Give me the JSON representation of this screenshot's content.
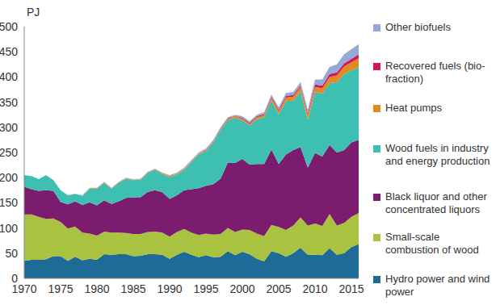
{
  "chart_data": {
    "type": "area",
    "stacked": true,
    "y_label": "PJ",
    "x": [
      1970,
      1971,
      1972,
      1973,
      1974,
      1975,
      1976,
      1977,
      1978,
      1979,
      1980,
      1981,
      1982,
      1983,
      1984,
      1985,
      1986,
      1987,
      1988,
      1989,
      1990,
      1991,
      1992,
      1993,
      1994,
      1995,
      1996,
      1997,
      1998,
      1999,
      2000,
      2001,
      2002,
      2003,
      2004,
      2005,
      2006,
      2007,
      2008,
      2009,
      2010,
      2011,
      2012,
      2013,
      2014,
      2015,
      2016
    ],
    "xlim": [
      1970,
      2016
    ],
    "xticks": [
      1970,
      1975,
      1980,
      1985,
      1990,
      1995,
      2000,
      2005,
      2010,
      2015
    ],
    "ylim": [
      0,
      500
    ],
    "yticks": [
      0,
      50,
      100,
      150,
      200,
      250,
      300,
      350,
      400,
      450,
      500
    ],
    "grid": false,
    "legend": "right",
    "series": [
      {
        "name": "Hydro power and wind power",
        "color": "#1f6b98",
        "values": [
          35,
          37,
          37,
          38,
          44,
          44,
          35,
          43,
          36,
          39,
          37,
          48,
          47,
          48,
          48,
          44,
          45,
          48,
          48,
          47,
          39,
          47,
          53,
          47,
          42,
          46,
          42,
          43,
          54,
          46,
          53,
          48,
          39,
          34,
          54,
          50,
          43,
          50,
          61,
          47,
          47,
          46,
          60,
          47,
          50,
          62,
          68
        ]
      },
      {
        "name": "Small-scale combustion of wood",
        "color": "#a9c23f",
        "values": [
          92,
          90,
          85,
          80,
          75,
          68,
          64,
          60,
          55,
          50,
          48,
          45,
          44,
          43,
          42,
          44,
          43,
          44,
          45,
          44,
          44,
          45,
          45,
          44,
          44,
          43,
          45,
          45,
          46,
          46,
          44,
          48,
          50,
          50,
          52,
          52,
          53,
          55,
          60,
          58,
          62,
          58,
          68,
          58,
          60,
          60,
          62
        ]
      },
      {
        "name": "Black liquor and other concentrated liquors",
        "color": "#7b1c6e",
        "values": [
          55,
          50,
          52,
          57,
          55,
          40,
          48,
          50,
          55,
          62,
          60,
          62,
          57,
          62,
          70,
          73,
          73,
          80,
          82,
          80,
          75,
          73,
          77,
          86,
          93,
          95,
          100,
          110,
          130,
          137,
          140,
          130,
          138,
          143,
          150,
          125,
          150,
          150,
          140,
          115,
          140,
          138,
          137,
          145,
          145,
          148,
          145
        ]
      },
      {
        "name": "Wood fuels in industry and energy production",
        "color": "#3dbfb2",
        "values": [
          23,
          26,
          23,
          30,
          21,
          23,
          18,
          15,
          18,
          27,
          33,
          35,
          30,
          37,
          38,
          34,
          35,
          38,
          41,
          36,
          43,
          41,
          41,
          54,
          67,
          69,
          83,
          97,
          84,
          90,
          77,
          78,
          89,
          93,
          97,
          99,
          106,
          98,
          111,
          95,
          121,
          125,
          123,
          140,
          151,
          143,
          144
        ]
      },
      {
        "name": "Heat pumps",
        "color": "#e3891f",
        "values": [
          0,
          0,
          0,
          0,
          0,
          0,
          0,
          0,
          0,
          1,
          1,
          1,
          1,
          1,
          1,
          1,
          1,
          1,
          1,
          2,
          2,
          2,
          2,
          2,
          2,
          2,
          2,
          2,
          3,
          3,
          3,
          3,
          4,
          4,
          5,
          6,
          7,
          8,
          8,
          9,
          10,
          11,
          12,
          13,
          15,
          16,
          18
        ]
      },
      {
        "name": "Recovered fuels (bio-fraction)",
        "color": "#d2175c",
        "values": [
          0,
          0,
          0,
          0,
          0,
          0,
          0,
          0,
          0,
          0,
          0,
          0,
          0,
          0,
          0,
          0,
          0,
          0,
          0,
          0,
          0,
          0,
          0,
          0,
          0,
          1,
          1,
          1,
          1,
          1,
          2,
          2,
          2,
          2,
          3,
          3,
          3,
          3,
          3,
          4,
          5,
          5,
          6,
          6,
          6,
          7,
          8
        ]
      },
      {
        "name": "Other biofuels",
        "color": "#93a9d6",
        "values": [
          0,
          0,
          0,
          0,
          0,
          0,
          0,
          0,
          1,
          1,
          1,
          1,
          1,
          1,
          1,
          1,
          1,
          1,
          1,
          1,
          2,
          2,
          2,
          2,
          2,
          2,
          2,
          2,
          2,
          2,
          3,
          3,
          3,
          4,
          4,
          5,
          6,
          6,
          7,
          7,
          10,
          12,
          14,
          16,
          18,
          19,
          20
        ]
      }
    ]
  }
}
